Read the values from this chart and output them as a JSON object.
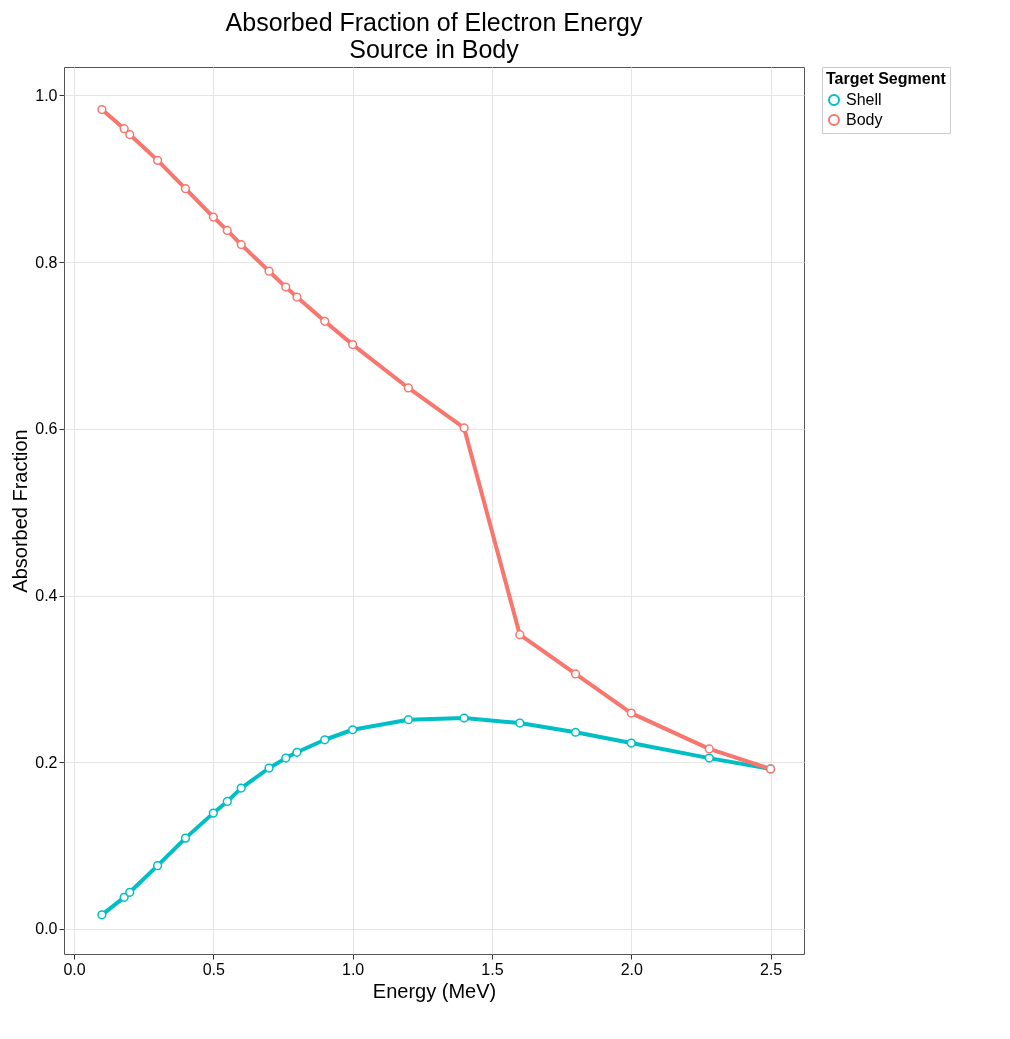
{
  "chart_data": {
    "type": "line",
    "title": "Absorbed Fraction of Electron Energy\nSource in Body",
    "xlabel": "Energy (MeV)",
    "ylabel": "Absorbed Fraction",
    "legend_title": "Target Segment",
    "x": [
      0.1,
      0.18,
      0.2,
      0.3,
      0.4,
      0.5,
      0.55,
      0.6,
      0.7,
      0.76,
      0.8,
      0.9,
      1.0,
      1.2,
      1.4,
      1.6,
      1.8,
      2.0,
      2.28,
      2.5
    ],
    "series": [
      {
        "name": "Shell",
        "color": "#00bfc4",
        "values": [
          0.017,
          0.038,
          0.044,
          0.076,
          0.109,
          0.139,
          0.153,
          0.169,
          0.193,
          0.205,
          0.212,
          0.227,
          0.239,
          0.251,
          0.253,
          0.247,
          0.236,
          0.223,
          0.205,
          0.192
        ]
      },
      {
        "name": "Body",
        "color": "#f8766d",
        "values": [
          0.983,
          0.96,
          0.953,
          0.922,
          0.888,
          0.854,
          0.838,
          0.821,
          0.789,
          0.77,
          0.758,
          0.729,
          0.701,
          0.649,
          0.601,
          0.353,
          0.306,
          0.259,
          0.216,
          0.192
        ]
      }
    ],
    "xlim": [
      -0.036,
      2.62
    ],
    "ylim": [
      -0.03,
      1.034
    ],
    "xticks": [
      {
        "value": 0,
        "label": "0.0"
      },
      0.5,
      {
        "value": 1,
        "label": "1.0"
      },
      1.5,
      {
        "value": 2,
        "label": "2.0"
      },
      2.5
    ],
    "yticks": [
      {
        "value": 0,
        "label": "0.0"
      },
      0.2,
      0.4,
      0.6,
      0.8,
      {
        "value": 1,
        "label": "1.0"
      }
    ],
    "grid": true,
    "legend": "right",
    "marker": "circle",
    "line_style": "solid"
  }
}
